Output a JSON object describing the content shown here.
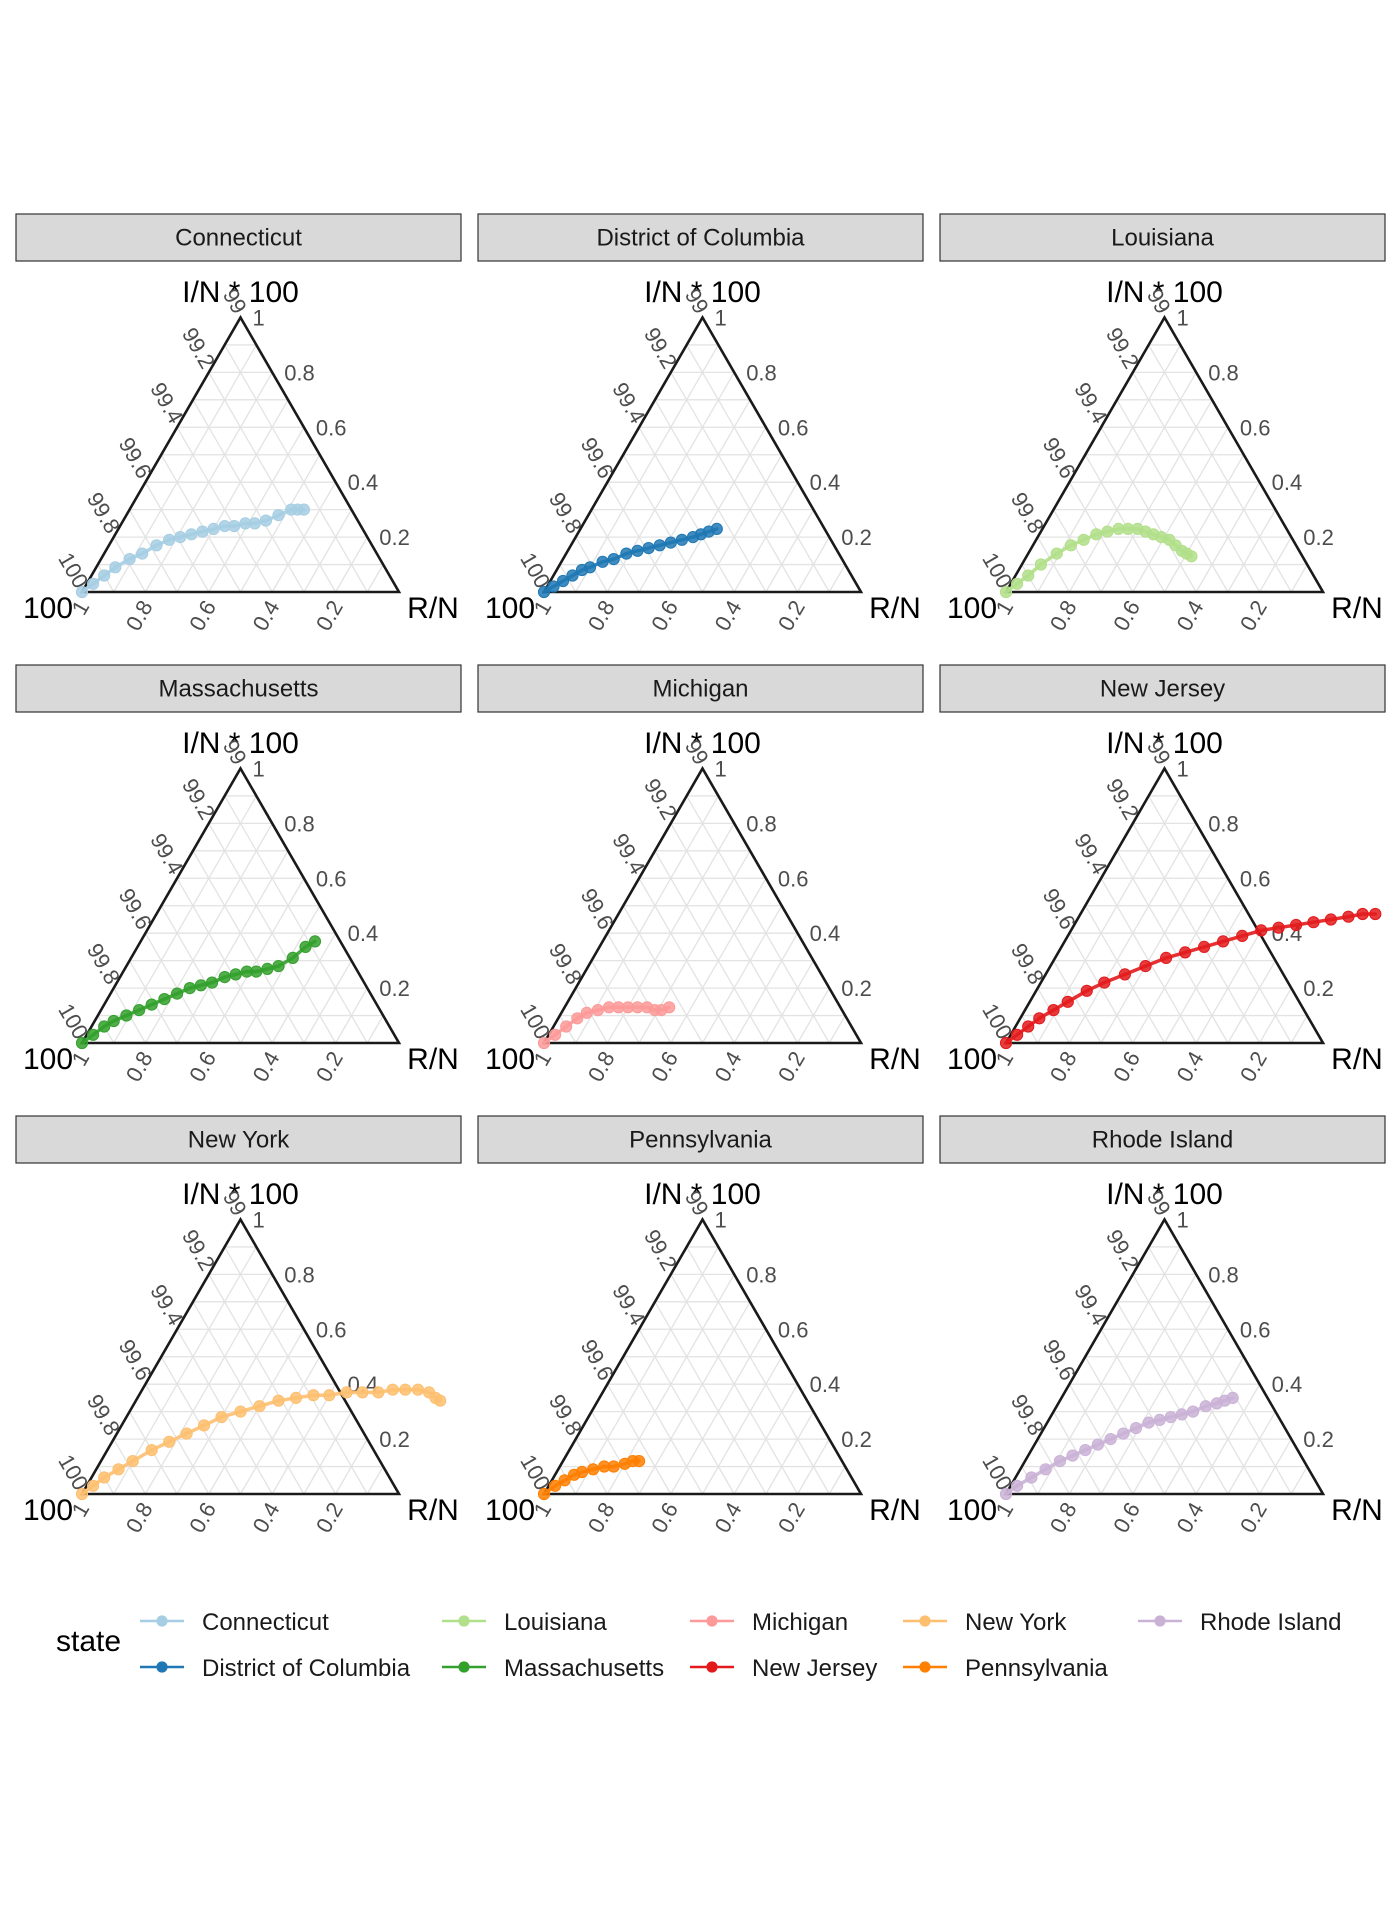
{
  "chart_data": {
    "type": "scatter",
    "kind": "ternary",
    "facet_by": "state",
    "axes": {
      "top": {
        "label": "I/N * 100",
        "range": [
          99,
          100
        ]
      },
      "right": {
        "label": "R/N",
        "range": [
          0,
          1
        ]
      },
      "left": {
        "label": "100"
      }
    },
    "ticks": {
      "left": [
        "99",
        "99.2",
        "99.4",
        "99.6",
        "99.8",
        "100"
      ],
      "right": [
        "1",
        "0.8",
        "0.6",
        "0.4",
        "0.2"
      ],
      "bottom": [
        "0.2",
        "0.4",
        "0.6",
        "0.8",
        "1"
      ]
    },
    "grid": true,
    "legend": {
      "title": "state",
      "position": "bottom",
      "entries": [
        "Connecticut",
        "District of Columbia",
        "Louisiana",
        "Massachusetts",
        "Michigan",
        "New Jersey",
        "New York",
        "Pennsylvania",
        "Rhode Island"
      ]
    },
    "panels": [
      {
        "name": "Connecticut",
        "color": "#a6cee3",
        "points": [
          [
            0.0,
            0.0
          ],
          [
            0.02,
            0.03
          ],
          [
            0.04,
            0.06
          ],
          [
            0.06,
            0.09
          ],
          [
            0.09,
            0.12
          ],
          [
            0.12,
            0.14
          ],
          [
            0.15,
            0.17
          ],
          [
            0.18,
            0.19
          ],
          [
            0.21,
            0.2
          ],
          [
            0.24,
            0.21
          ],
          [
            0.27,
            0.22
          ],
          [
            0.3,
            0.23
          ],
          [
            0.33,
            0.24
          ],
          [
            0.36,
            0.24
          ],
          [
            0.39,
            0.25
          ],
          [
            0.42,
            0.25
          ],
          [
            0.45,
            0.26
          ],
          [
            0.48,
            0.28
          ],
          [
            0.51,
            0.3
          ],
          [
            0.53,
            0.3
          ],
          [
            0.55,
            0.3
          ]
        ]
      },
      {
        "name": "District of Columbia",
        "color": "#1f78b4",
        "points": [
          [
            0.0,
            0.0
          ],
          [
            0.02,
            0.02
          ],
          [
            0.04,
            0.04
          ],
          [
            0.06,
            0.06
          ],
          [
            0.08,
            0.08
          ],
          [
            0.1,
            0.09
          ],
          [
            0.13,
            0.11
          ],
          [
            0.16,
            0.12
          ],
          [
            0.19,
            0.14
          ],
          [
            0.22,
            0.15
          ],
          [
            0.25,
            0.16
          ],
          [
            0.28,
            0.17
          ],
          [
            0.31,
            0.18
          ],
          [
            0.34,
            0.19
          ],
          [
            0.37,
            0.2
          ],
          [
            0.39,
            0.21
          ],
          [
            0.41,
            0.22
          ],
          [
            0.43,
            0.23
          ]
        ]
      },
      {
        "name": "Louisiana",
        "color": "#b2df8a",
        "points": [
          [
            0.0,
            0.0
          ],
          [
            0.02,
            0.03
          ],
          [
            0.04,
            0.06
          ],
          [
            0.06,
            0.1
          ],
          [
            0.09,
            0.14
          ],
          [
            0.12,
            0.17
          ],
          [
            0.15,
            0.19
          ],
          [
            0.18,
            0.21
          ],
          [
            0.21,
            0.22
          ],
          [
            0.24,
            0.23
          ],
          [
            0.27,
            0.23
          ],
          [
            0.3,
            0.23
          ],
          [
            0.33,
            0.22
          ],
          [
            0.36,
            0.21
          ],
          [
            0.39,
            0.2
          ],
          [
            0.42,
            0.19
          ],
          [
            0.45,
            0.17
          ],
          [
            0.48,
            0.15
          ],
          [
            0.5,
            0.14
          ],
          [
            0.52,
            0.13
          ]
        ]
      },
      {
        "name": "Massachusetts",
        "color": "#33a02c",
        "points": [
          [
            0.0,
            0.0
          ],
          [
            0.02,
            0.03
          ],
          [
            0.04,
            0.06
          ],
          [
            0.06,
            0.08
          ],
          [
            0.09,
            0.1
          ],
          [
            0.12,
            0.12
          ],
          [
            0.15,
            0.14
          ],
          [
            0.18,
            0.16
          ],
          [
            0.21,
            0.18
          ],
          [
            0.24,
            0.2
          ],
          [
            0.27,
            0.21
          ],
          [
            0.3,
            0.22
          ],
          [
            0.33,
            0.24
          ],
          [
            0.36,
            0.25
          ],
          [
            0.39,
            0.26
          ],
          [
            0.42,
            0.26
          ],
          [
            0.45,
            0.27
          ],
          [
            0.48,
            0.28
          ],
          [
            0.51,
            0.31
          ],
          [
            0.53,
            0.35
          ],
          [
            0.55,
            0.37
          ]
        ]
      },
      {
        "name": "Michigan",
        "color": "#fb9a99",
        "points": [
          [
            0.0,
            0.0
          ],
          [
            0.02,
            0.03
          ],
          [
            0.04,
            0.06
          ],
          [
            0.06,
            0.09
          ],
          [
            0.08,
            0.11
          ],
          [
            0.11,
            0.12
          ],
          [
            0.14,
            0.13
          ],
          [
            0.17,
            0.13
          ],
          [
            0.2,
            0.13
          ],
          [
            0.23,
            0.13
          ],
          [
            0.26,
            0.13
          ],
          [
            0.29,
            0.12
          ],
          [
            0.31,
            0.12
          ],
          [
            0.33,
            0.13
          ]
        ]
      },
      {
        "name": "New Jersey",
        "color": "#e31a1c",
        "points": [
          [
            0.0,
            0.0
          ],
          [
            0.02,
            0.03
          ],
          [
            0.04,
            0.06
          ],
          [
            0.06,
            0.09
          ],
          [
            0.09,
            0.12
          ],
          [
            0.12,
            0.15
          ],
          [
            0.16,
            0.19
          ],
          [
            0.2,
            0.22
          ],
          [
            0.25,
            0.25
          ],
          [
            0.3,
            0.28
          ],
          [
            0.35,
            0.31
          ],
          [
            0.4,
            0.33
          ],
          [
            0.45,
            0.35
          ],
          [
            0.5,
            0.37
          ],
          [
            0.55,
            0.39
          ],
          [
            0.6,
            0.41
          ],
          [
            0.65,
            0.42
          ],
          [
            0.7,
            0.43
          ],
          [
            0.75,
            0.44
          ],
          [
            0.8,
            0.45
          ],
          [
            0.85,
            0.46
          ],
          [
            0.89,
            0.47
          ],
          [
            0.93,
            0.47
          ]
        ]
      },
      {
        "name": "New York",
        "color": "#fdbf6f",
        "points": [
          [
            0.0,
            0.0
          ],
          [
            0.02,
            0.03
          ],
          [
            0.04,
            0.06
          ],
          [
            0.07,
            0.09
          ],
          [
            0.1,
            0.12
          ],
          [
            0.14,
            0.16
          ],
          [
            0.18,
            0.19
          ],
          [
            0.22,
            0.22
          ],
          [
            0.26,
            0.25
          ],
          [
            0.3,
            0.28
          ],
          [
            0.35,
            0.3
          ],
          [
            0.4,
            0.32
          ],
          [
            0.45,
            0.34
          ],
          [
            0.5,
            0.35
          ],
          [
            0.55,
            0.36
          ],
          [
            0.6,
            0.36
          ],
          [
            0.65,
            0.37
          ],
          [
            0.7,
            0.37
          ],
          [
            0.75,
            0.37
          ],
          [
            0.79,
            0.38
          ],
          [
            0.83,
            0.38
          ],
          [
            0.87,
            0.38
          ],
          [
            0.91,
            0.37
          ],
          [
            0.94,
            0.35
          ],
          [
            0.96,
            0.34
          ]
        ]
      },
      {
        "name": "Pennsylvania",
        "color": "#ff7f00",
        "points": [
          [
            0.0,
            0.0
          ],
          [
            0.02,
            0.03
          ],
          [
            0.04,
            0.05
          ],
          [
            0.06,
            0.07
          ],
          [
            0.08,
            0.08
          ],
          [
            0.11,
            0.09
          ],
          [
            0.14,
            0.1
          ],
          [
            0.17,
            0.1
          ],
          [
            0.2,
            0.11
          ],
          [
            0.22,
            0.12
          ],
          [
            0.24,
            0.12
          ]
        ]
      },
      {
        "name": "Rhode Island",
        "color": "#cab2d6",
        "points": [
          [
            0.0,
            0.0
          ],
          [
            0.02,
            0.03
          ],
          [
            0.05,
            0.06
          ],
          [
            0.08,
            0.09
          ],
          [
            0.11,
            0.12
          ],
          [
            0.14,
            0.14
          ],
          [
            0.17,
            0.16
          ],
          [
            0.2,
            0.18
          ],
          [
            0.23,
            0.2
          ],
          [
            0.26,
            0.22
          ],
          [
            0.29,
            0.24
          ],
          [
            0.32,
            0.26
          ],
          [
            0.35,
            0.27
          ],
          [
            0.38,
            0.28
          ],
          [
            0.41,
            0.29
          ],
          [
            0.44,
            0.3
          ],
          [
            0.47,
            0.32
          ],
          [
            0.5,
            0.33
          ],
          [
            0.52,
            0.34
          ],
          [
            0.54,
            0.35
          ]
        ]
      }
    ]
  }
}
